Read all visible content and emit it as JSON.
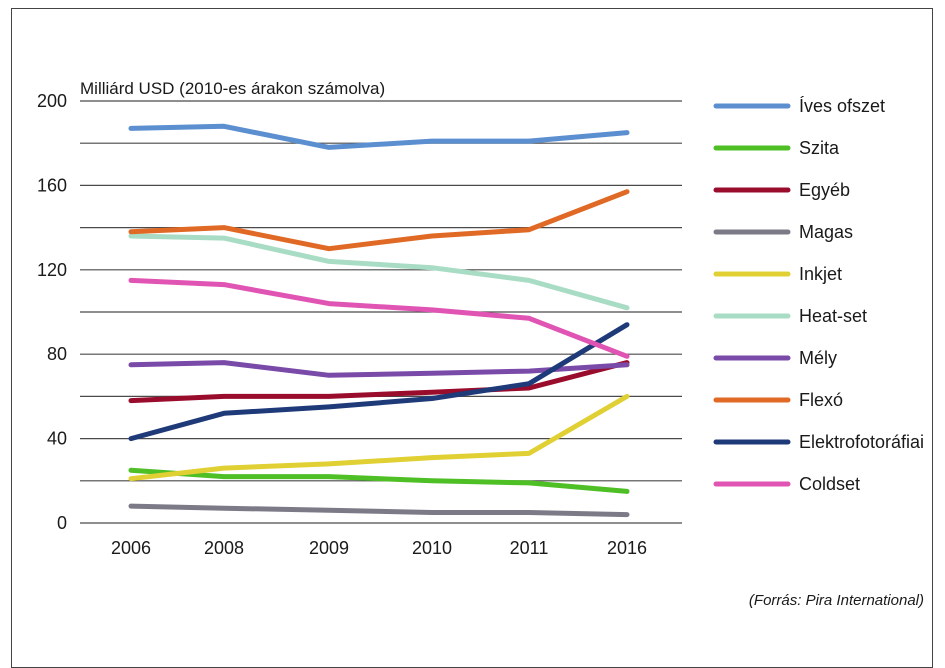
{
  "chart_data": {
    "type": "line",
    "ylabel": "Milliárd USD (2010-es árakon számolva)",
    "categories": [
      "2006",
      "2008",
      "2009",
      "2010",
      "2011",
      "2016"
    ],
    "ylim": [
      0,
      200
    ],
    "yticks": [
      0,
      40,
      80,
      120,
      160,
      200
    ],
    "grid": true,
    "legend_position": "right",
    "source": "(Forrás: Pira International)",
    "series": [
      {
        "name": "Íves ofszet",
        "color": "#5b8fd0",
        "values": [
          187,
          188,
          178,
          181,
          181,
          185
        ]
      },
      {
        "name": "Szita",
        "color": "#4fbf26",
        "values": [
          25,
          22,
          22,
          20,
          19,
          15
        ]
      },
      {
        "name": "Egyéb",
        "color": "#9a0c2c",
        "values": [
          58,
          60,
          60,
          62,
          64,
          76
        ]
      },
      {
        "name": "Magas",
        "color": "#7c7a87",
        "values": [
          8,
          7,
          6,
          5,
          5,
          4
        ]
      },
      {
        "name": "Inkjet",
        "color": "#e0d034",
        "values": [
          21,
          26,
          28,
          31,
          33,
          60
        ]
      },
      {
        "name": "Heat-set",
        "color": "#a9dcc4",
        "values": [
          136,
          135,
          124,
          121,
          115,
          102
        ]
      },
      {
        "name": "Mély",
        "color": "#7a4aa8",
        "values": [
          75,
          76,
          70,
          71,
          72,
          75
        ]
      },
      {
        "name": "Flexó",
        "color": "#e06a25",
        "values": [
          138,
          140,
          130,
          136,
          139,
          157
        ]
      },
      {
        "name": "Elektrofotoráfiai",
        "color": "#1f3a78",
        "values": [
          40,
          52,
          55,
          59,
          66,
          94
        ]
      },
      {
        "name": "Coldset",
        "color": "#e055b3",
        "values": [
          115,
          113,
          104,
          101,
          97,
          79
        ]
      }
    ]
  }
}
